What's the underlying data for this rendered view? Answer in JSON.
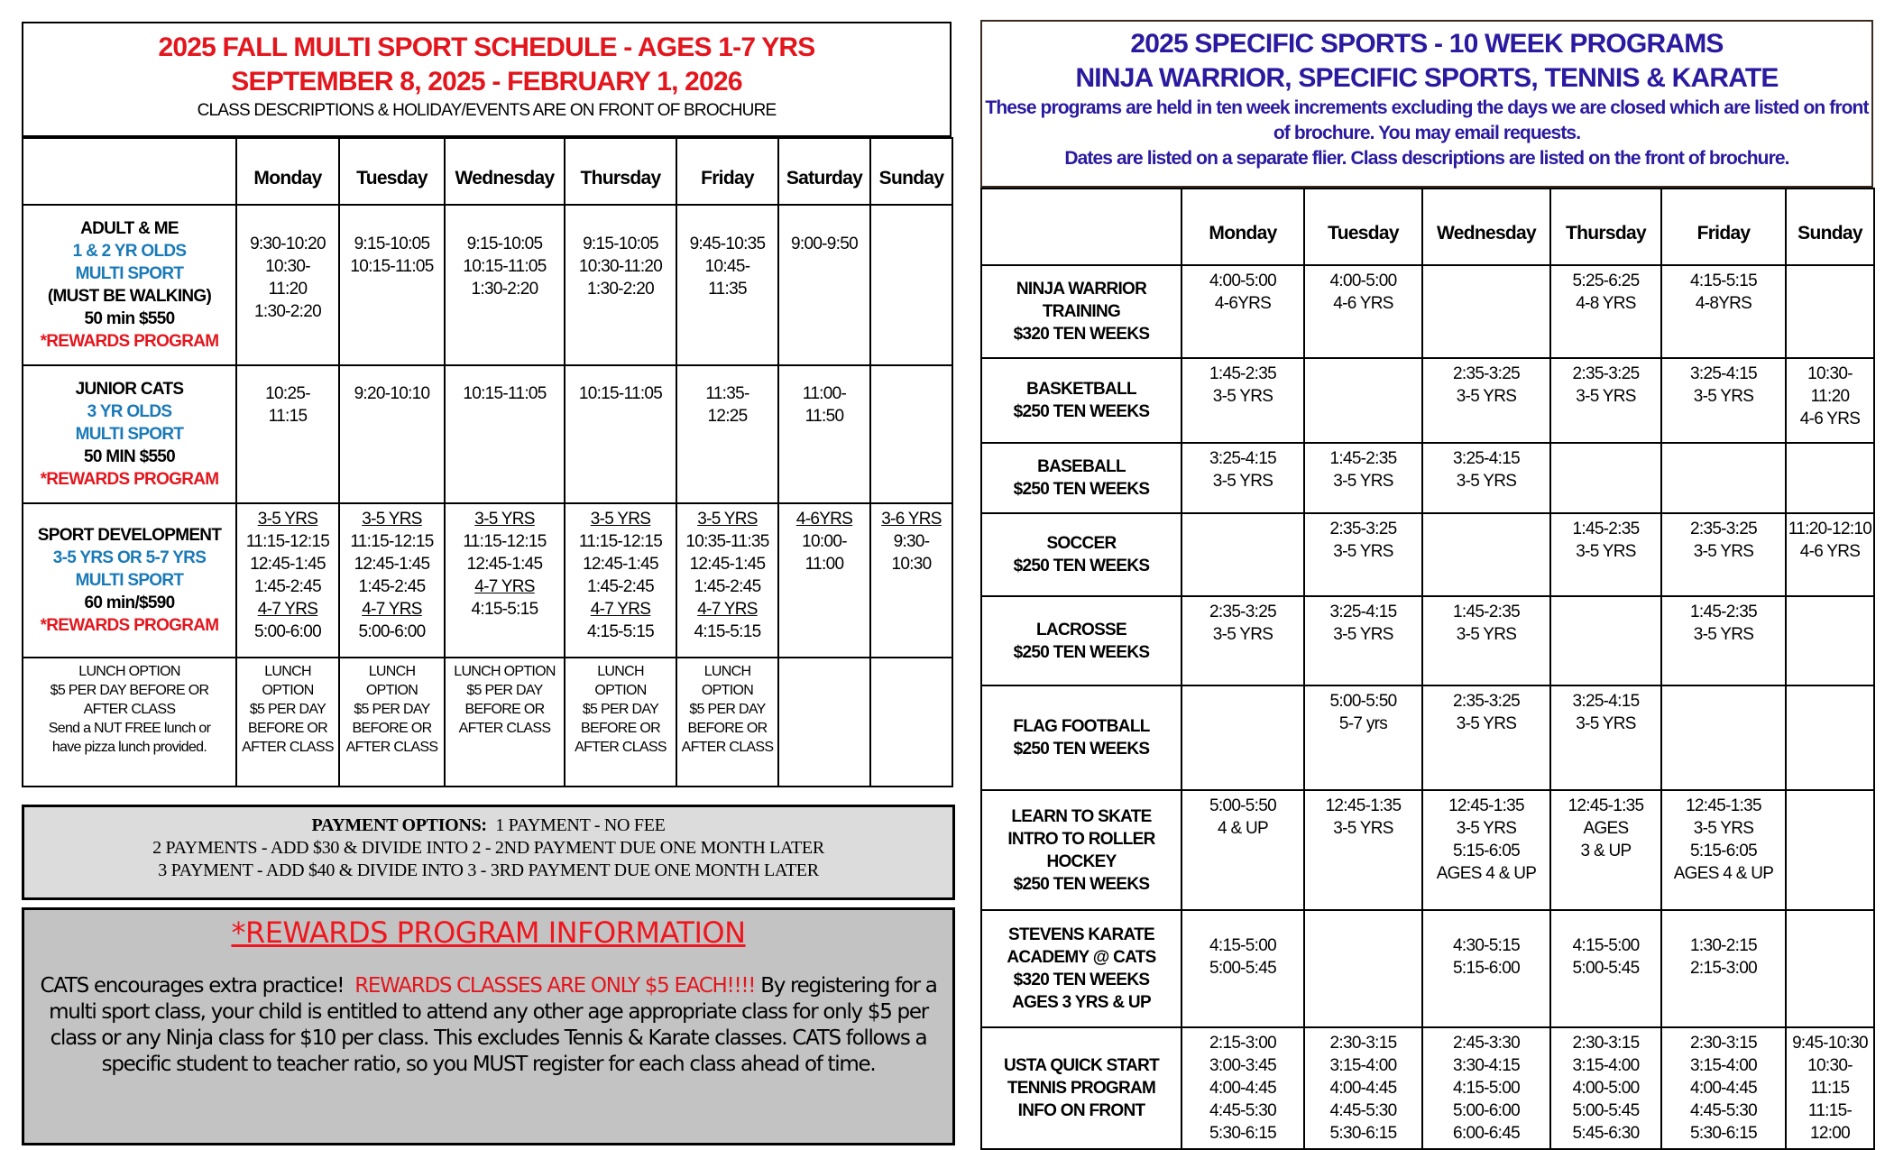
{
  "multi": {
    "title1": "2025 FALL MULTI SPORT SCHEDULE - AGES 1-7 YRS",
    "title2": "SEPTEMBER 8, 2025 - FEBRUARY 1, 2026",
    "subtitle": "CLASS DESCRIPTIONS & HOLIDAY/EVENTS ARE ON FRONT OF BROCHURE",
    "days": [
      "Monday",
      "Tuesday",
      "Wednesday",
      "Thursday",
      "Friday",
      "Saturday",
      "Sunday"
    ],
    "rows": [
      {
        "label": [
          {
            "t": "ADULT & ME"
          },
          {
            "t": "1 & 2 YR OLDS",
            "c": "blue"
          },
          {
            "t": "MULTI SPORT",
            "c": "blue"
          },
          {
            "t": "(MUST BE WALKING)"
          },
          {
            "t": "50 min $550"
          },
          {
            "t": "*REWARDS PROGRAM",
            "c": "red"
          }
        ],
        "cells": [
          [
            "9:30-10:20",
            "10:30-",
            "11:20",
            "1:30-2:20"
          ],
          [
            "9:15-10:05",
            "10:15-11:05"
          ],
          [
            "9:15-10:05",
            "10:15-11:05",
            "1:30-2:20"
          ],
          [
            "9:15-10:05",
            "10:30-11:20",
            "1:30-2:20"
          ],
          [
            "9:45-10:35",
            "10:45-",
            "11:35"
          ],
          [
            "9:00-9:50"
          ],
          []
        ]
      },
      {
        "label": [
          {
            "t": "JUNIOR CATS"
          },
          {
            "t": "3 YR OLDS",
            "c": "blue"
          },
          {
            "t": "MULTI SPORT",
            "c": "blue"
          },
          {
            "t": "50 MIN $550"
          },
          {
            "t": "*REWARDS PROGRAM",
            "c": "red"
          }
        ],
        "cells": [
          [
            "10:25-",
            "11:15"
          ],
          [
            "9:20-10:10"
          ],
          [
            "10:15-11:05"
          ],
          [
            "10:15-11:05"
          ],
          [
            "11:35-",
            "12:25"
          ],
          [
            "11:00-",
            "11:50"
          ],
          []
        ]
      },
      {
        "label": [
          {
            "t": "SPORT DEVELOPMENT"
          },
          {
            "t": "3-5 YRS OR 5-7 YRS",
            "c": "blue"
          },
          {
            "t": "MULTI SPORT",
            "c": "blue"
          },
          {
            "t": "60 min/$590"
          },
          {
            "t": "*REWARDS PROGRAM",
            "c": "red"
          }
        ],
        "cells": [
          [
            "3-5 YRS",
            "11:15-12:15",
            "12:45-1:45",
            "1:45-2:45",
            "4-7 YRS",
            "5:00-6:00"
          ],
          [
            "3-5 YRS",
            "11:15-12:15",
            "12:45-1:45",
            "1:45-2:45",
            "4-7 YRS",
            "5:00-6:00"
          ],
          [
            "3-5 YRS",
            "11:15-12:15",
            "12:45-1:45",
            "4-7 YRS",
            "4:15-5:15"
          ],
          [
            "3-5 YRS",
            "11:15-12:15",
            "12:45-1:45",
            "1:45-2:45",
            "4-7 YRS",
            "4:15-5:15"
          ],
          [
            "3-5 YRS",
            "10:35-11:35",
            "12:45-1:45",
            "1:45-2:45",
            "4-7 YRS",
            "4:15-5:15"
          ],
          [
            "4-6YRS",
            "10:00-",
            "11:00"
          ],
          [
            "3-6 YRS",
            "9:30-",
            "10:30"
          ]
        ]
      },
      {
        "label": [
          {
            "t": "LUNCH OPTION"
          },
          {
            "t": "$5 PER DAY BEFORE OR"
          },
          {
            "t": "AFTER CLASS"
          },
          {
            "t": "Send a NUT FREE lunch or"
          },
          {
            "t": "have pizza lunch provided."
          }
        ],
        "cells": [
          [
            "LUNCH",
            "OPTION",
            "$5 PER DAY",
            "BEFORE OR",
            "AFTER CLASS"
          ],
          [
            "LUNCH",
            "OPTION",
            "$5 PER DAY",
            "BEFORE OR",
            "AFTER CLASS"
          ],
          [
            "LUNCH OPTION",
            "$5 PER DAY",
            "BEFORE OR",
            "AFTER CLASS"
          ],
          [
            "LUNCH",
            "OPTION",
            "$5 PER DAY",
            "BEFORE OR",
            "AFTER CLASS"
          ],
          [
            "LUNCH",
            "OPTION",
            "$5 PER DAY",
            "BEFORE OR",
            "AFTER CLASS"
          ],
          [],
          []
        ]
      }
    ]
  },
  "payment": {
    "heading": "PAYMENT OPTIONS:",
    "line1": "1 PAYMENT - NO FEE",
    "line2": "2 PAYMENTS - ADD $30 & DIVIDE INTO 2 - 2ND PAYMENT DUE ONE MONTH LATER",
    "line3": "3 PAYMENT - ADD $40 & DIVIDE INTO 3 - 3RD PAYMENT DUE ONE MONTH LATER"
  },
  "rewards": {
    "heading": "*REWARDS PROGRAM INFORMATION",
    "intro": "CATS encourages extra practice!",
    "highlight": "REWARDS CLASSES ARE ONLY $5 EACH!!!!",
    "body": "By registering for a multi sport class, your child is entitled to attend any other age appropriate class for only $5 per class or any Ninja class for $10 per class. This excludes Tennis & Karate classes. CATS follows a specific student to teacher ratio, so you MUST register for each class ahead of time."
  },
  "specific": {
    "title1": "2025 SPECIFIC SPORTS - 10 WEEK PROGRAMS",
    "title2": "NINJA WARRIOR, SPECIFIC SPORTS, TENNIS & KARATE",
    "desc1": "These programs are held in ten week increments excluding the days we are closed which are listed on front of brochure. You may email requests.",
    "desc2": "Dates are listed on a separate flier. Class descriptions are listed on the front of brochure.",
    "days": [
      "Monday",
      "Tuesday",
      "Wednesday",
      "Thursday",
      "Friday",
      "Sunday"
    ],
    "rows": [
      {
        "label": [
          "NINJA WARRIOR",
          "TRAINING",
          "$320 TEN WEEKS"
        ],
        "cells": [
          [
            "4:00-5:00",
            "4-6YRS"
          ],
          [
            "4:00-5:00",
            "4-6 YRS"
          ],
          [],
          [
            "5:25-6:25",
            "4-8 YRS"
          ],
          [
            "4:15-5:15",
            "4-8YRS"
          ],
          []
        ]
      },
      {
        "label": [
          "BASKETBALL",
          "$250 TEN WEEKS"
        ],
        "cells": [
          [
            "1:45-2:35",
            "3-5 YRS"
          ],
          [],
          [
            "2:35-3:25",
            "3-5 YRS"
          ],
          [
            "2:35-3:25",
            "3-5 YRS"
          ],
          [
            "3:25-4:15",
            "3-5 YRS"
          ],
          [
            "10:30-",
            "11:20",
            "4-6 YRS"
          ]
        ]
      },
      {
        "label": [
          "BASEBALL",
          "$250 TEN WEEKS"
        ],
        "cells": [
          [
            "3:25-4:15",
            "3-5 YRS"
          ],
          [
            "1:45-2:35",
            "3-5 YRS"
          ],
          [
            "3:25-4:15",
            "3-5 YRS"
          ],
          [],
          [],
          []
        ]
      },
      {
        "label": [
          "SOCCER",
          "$250 TEN WEEKS"
        ],
        "cells": [
          [],
          [
            "2:35-3:25",
            "3-5 YRS"
          ],
          [],
          [
            "1:45-2:35",
            "3-5 YRS"
          ],
          [
            "2:35-3:25",
            "3-5 YRS"
          ],
          [
            "11:20-12:10",
            "4-6 YRS"
          ]
        ]
      },
      {
        "label": [
          "LACROSSE",
          "$250 TEN WEEKS"
        ],
        "cells": [
          [
            "2:35-3:25",
            "3-5 YRS"
          ],
          [
            "3:25-4:15",
            "3-5 YRS"
          ],
          [
            "1:45-2:35",
            "3-5 YRS"
          ],
          [],
          [
            "1:45-2:35",
            "3-5 YRS"
          ],
          []
        ]
      },
      {
        "label": [
          "FLAG FOOTBALL",
          "$250 TEN WEEKS"
        ],
        "cells": [
          [],
          [
            "5:00-5:50",
            "5-7 yrs"
          ],
          [
            "2:35-3:25",
            "3-5 YRS"
          ],
          [
            "3:25-4:15",
            "3-5 YRS"
          ],
          [],
          []
        ]
      },
      {
        "label": [
          "LEARN TO SKATE",
          "INTRO TO ROLLER",
          "HOCKEY",
          "$250 TEN WEEKS"
        ],
        "cells": [
          [
            "5:00-5:50",
            "4 & UP"
          ],
          [
            "12:45-1:35",
            "3-5 YRS"
          ],
          [
            "12:45-1:35",
            "3-5 YRS",
            "5:15-6:05",
            "AGES 4 & UP"
          ],
          [
            "12:45-1:35",
            "AGES",
            "3 & UP"
          ],
          [
            "12:45-1:35",
            "3-5 YRS",
            "5:15-6:05",
            "AGES 4 & UP"
          ],
          []
        ]
      },
      {
        "label": [
          "STEVENS KARATE",
          "ACADEMY @ CATS",
          "$320 TEN WEEKS",
          "AGES 3 YRS & UP"
        ],
        "cells": [
          [
            "4:15-5:00",
            "5:00-5:45"
          ],
          [],
          [
            "4:30-5:15",
            "5:15-6:00"
          ],
          [
            "4:15-5:00",
            "5:00-5:45"
          ],
          [
            "1:30-2:15",
            "2:15-3:00"
          ],
          []
        ]
      },
      {
        "label": [
          "USTA QUICK START",
          "TENNIS PROGRAM",
          "INFO ON FRONT"
        ],
        "cells": [
          [
            "2:15-3:00",
            "3:00-3:45",
            "4:00-4:45",
            "4:45-5:30",
            "5:30-6:15"
          ],
          [
            "2:30-3:15",
            "3:15-4:00",
            "4:00-4:45",
            "4:45-5:30",
            "5:30-6:15"
          ],
          [
            "2:45-3:30",
            "3:30-4:15",
            "4:15-5:00",
            "5:00-6:00",
            "6:00-6:45"
          ],
          [
            "2:30-3:15",
            "3:15-4:00",
            "4:00-5:00",
            "5:00-5:45",
            "5:45-6:30"
          ],
          [
            "2:30-3:15",
            "3:15-4:00",
            "4:00-4:45",
            "4:45-5:30",
            "5:30-6:15"
          ],
          [
            "9:45-10:30",
            "10:30-",
            "11:15",
            "11:15-",
            "12:00"
          ]
        ]
      }
    ]
  },
  "colors": {
    "title_red": "#e3161e",
    "title_blue": "#2a1aa0",
    "label_blue": "#1a7ab8",
    "payment_bg": "#dcdcdc",
    "rewards_bg": "#c3c3c3"
  }
}
